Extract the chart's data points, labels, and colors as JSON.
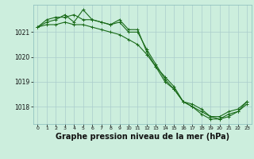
{
  "background_color": "#cceedd",
  "grid_color": "#aacccc",
  "line_color": "#1a6b1a",
  "xlabel": "Graphe pression niveau de la mer (hPa)",
  "xlabel_fontsize": 7,
  "x_ticks": [
    0,
    1,
    2,
    3,
    4,
    5,
    6,
    7,
    8,
    9,
    10,
    11,
    12,
    13,
    14,
    15,
    16,
    17,
    18,
    19,
    20,
    21,
    22,
    23
  ],
  "ylim": [
    1017.3,
    1022.1
  ],
  "yticks": [
    1018,
    1019,
    1020,
    1021
  ],
  "series1": [
    1021.2,
    1021.5,
    1021.6,
    1021.6,
    1021.7,
    1021.5,
    1021.5,
    1021.4,
    1021.3,
    1021.5,
    1021.1,
    1021.1,
    1020.2,
    1019.6,
    1019.0,
    1018.7,
    1018.2,
    1018.1,
    1017.9,
    1017.6,
    1017.6,
    1017.8,
    1017.9,
    1018.2
  ],
  "series2": [
    1021.2,
    1021.4,
    1021.5,
    1021.7,
    1021.4,
    1021.9,
    1021.5,
    1021.4,
    1021.3,
    1021.4,
    1021.0,
    1021.0,
    1020.3,
    1019.7,
    1019.1,
    1018.7,
    1018.2,
    1018.0,
    1017.8,
    1017.6,
    1017.5,
    1017.7,
    1017.8,
    1018.1
  ],
  "series3": [
    1021.2,
    1021.3,
    1021.3,
    1021.4,
    1021.3,
    1021.3,
    1021.2,
    1021.1,
    1021.0,
    1020.9,
    1020.7,
    1020.5,
    1020.1,
    1019.6,
    1019.2,
    1018.8,
    1018.2,
    1018.0,
    1017.7,
    1017.5,
    1017.5,
    1017.6,
    1017.8,
    1018.2
  ]
}
